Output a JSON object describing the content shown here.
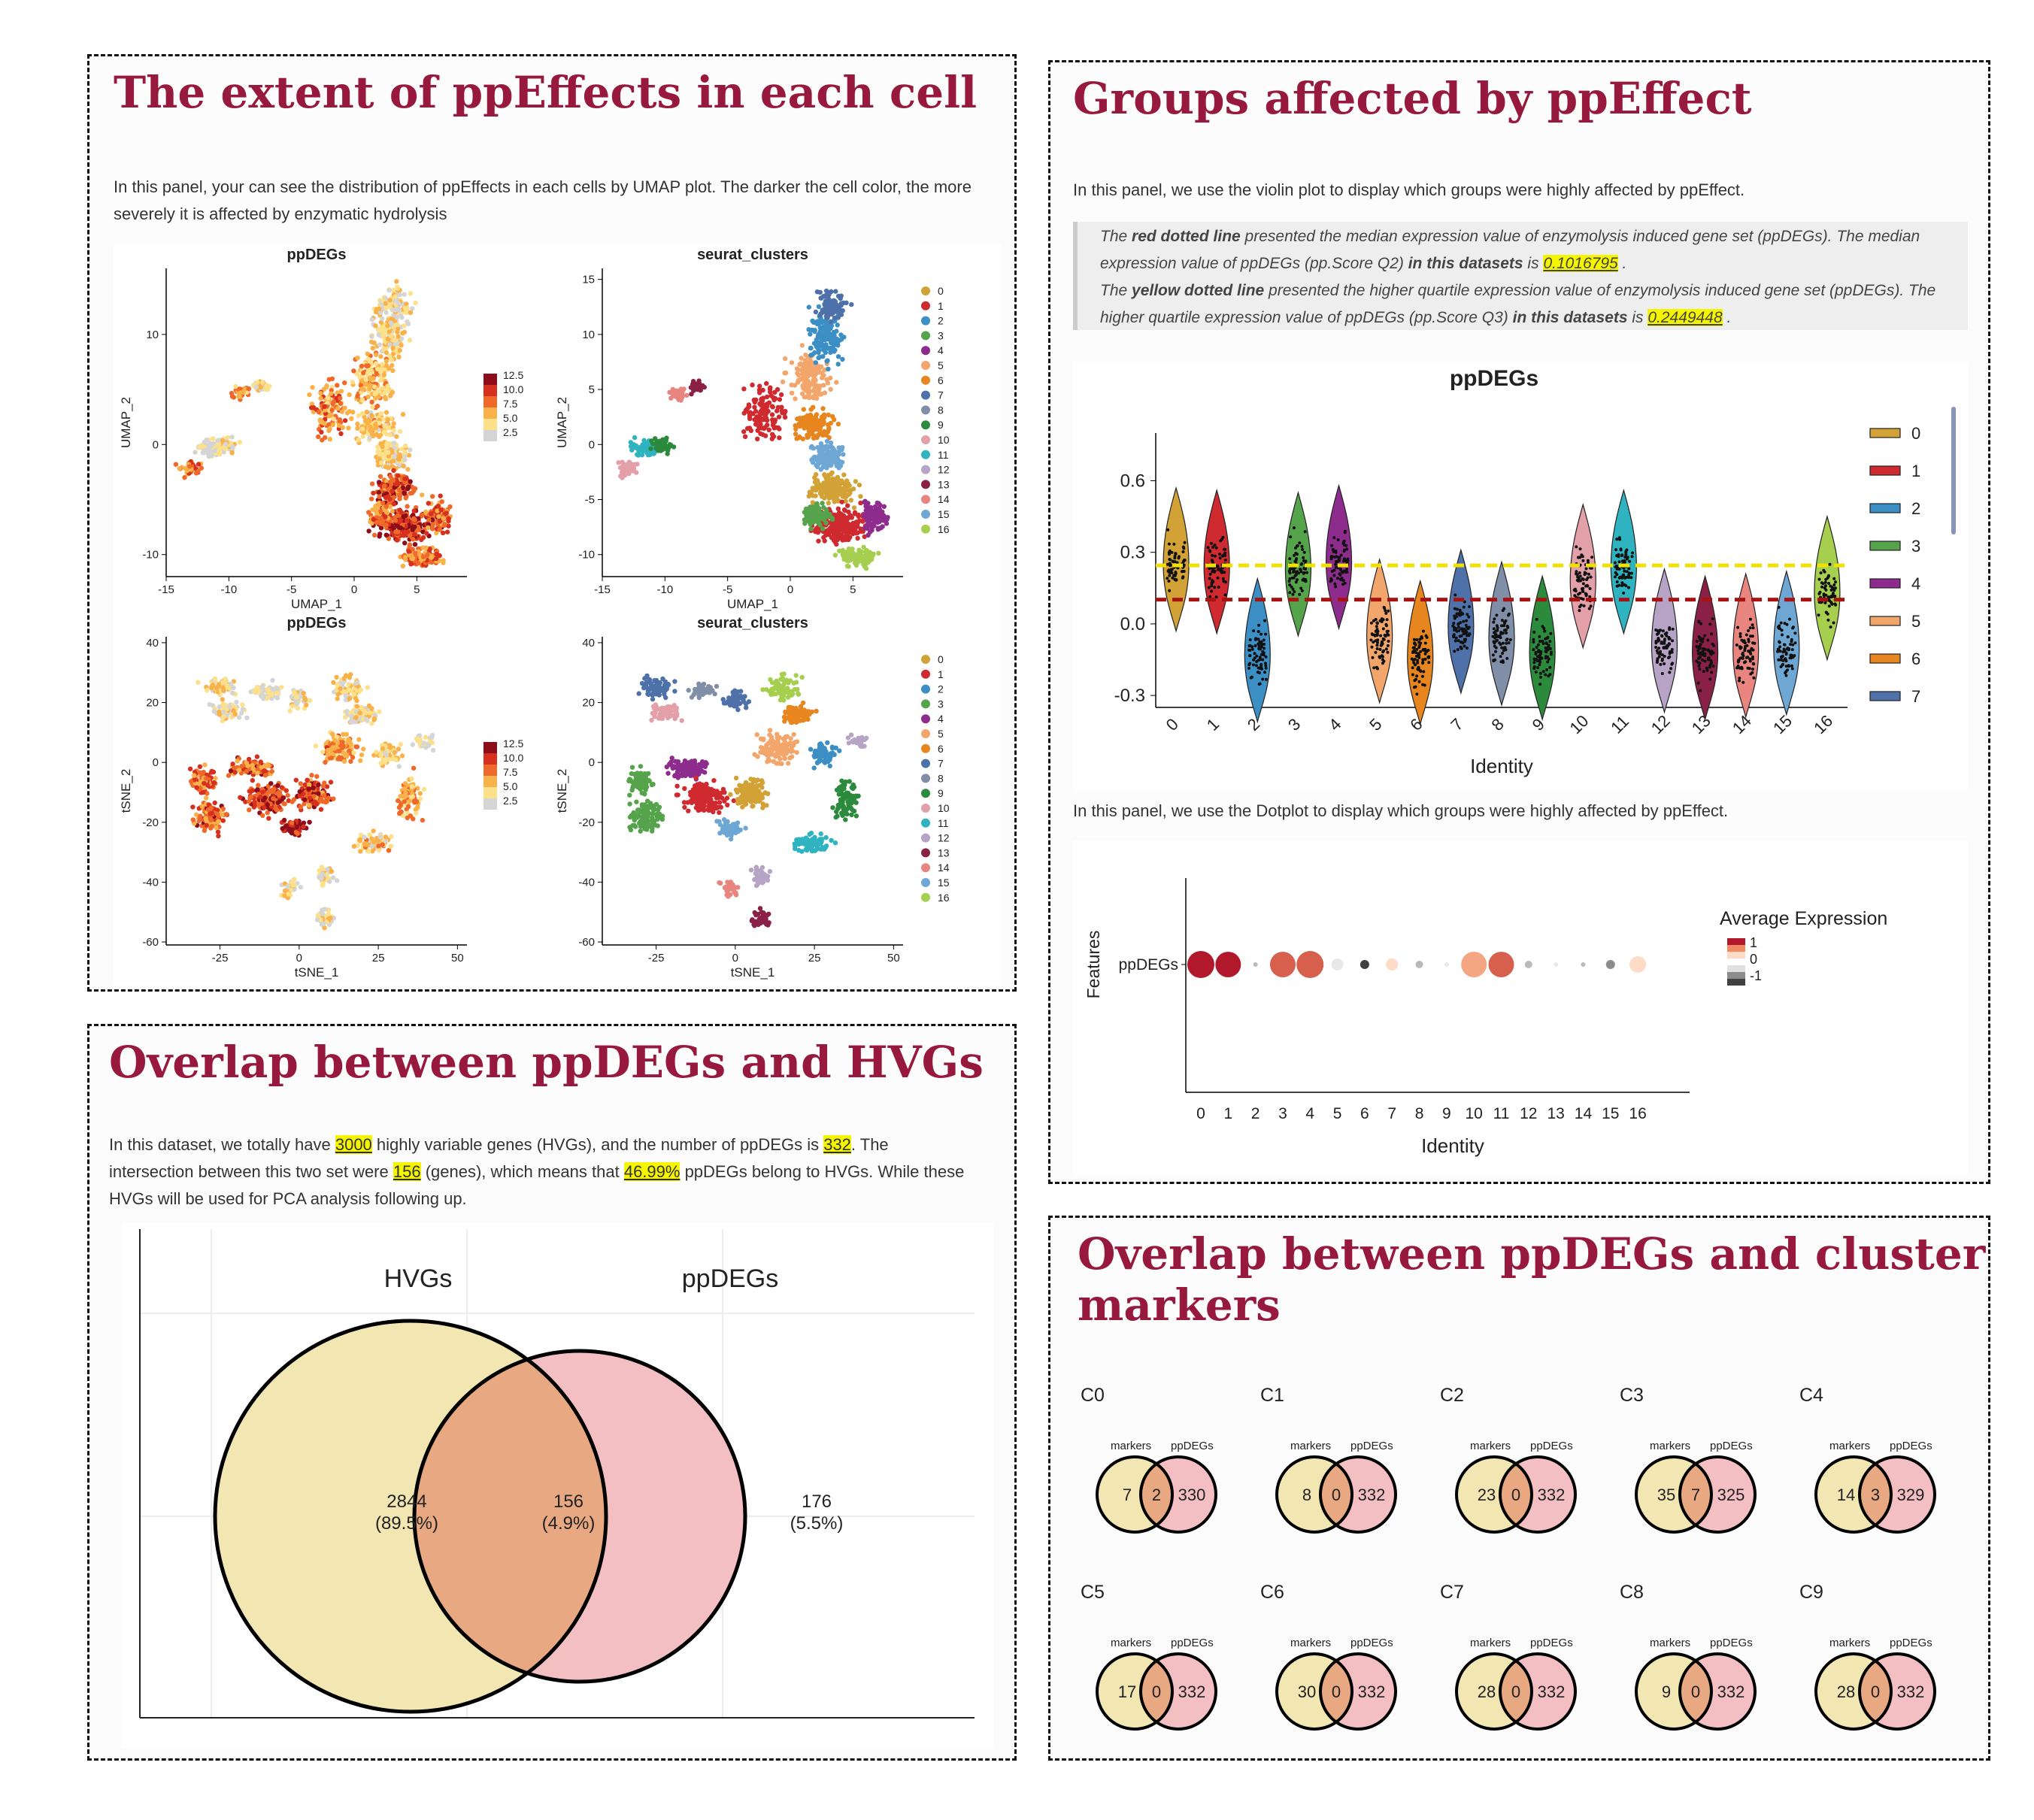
{
  "panel1": {
    "title": "The extent of ppEffects in each cell",
    "description": "In this panel, your can see the distribution of ppEffects in each cells by UMAP plot. The darker the cell color, the more severely it is affected by enzymatic hydrolysis"
  },
  "panel2": {
    "title": "Groups affected by ppEffect",
    "description": "In this panel, we use the violin plot to display which groups were highly affected by ppEffect.",
    "note": {
      "l1_a": "The ",
      "l1_b": "red dotted line",
      "l1_c": " presented the median expression value of enzymolysis induced gene set (ppDEGs). The median",
      "l2_a": "expression value of ppDEGs (pp.Score Q2) ",
      "l2_b": "in this datasets",
      "l2_c": " is ",
      "q2": "0.1016795",
      "l2_d": " .",
      "l3_a": "The ",
      "l3_b": "yellow dotted line",
      "l3_c": " presented the higher quartile expression value of enzymolysis induced gene set (ppDEGs). The",
      "l4_a": "higher quartile expression value of ppDEGs (pp.Score Q3) ",
      "l4_b": "in this datasets",
      "l4_c": " is ",
      "q3": "0.2449448",
      "l4_d": " ."
    },
    "dotplot_description": "In this panel, we use the Dotplot to display which groups were highly affected by ppEffect."
  },
  "panel3": {
    "title": "Overlap between ppDEGs and HVGs",
    "t1": "In this dataset, we totally have ",
    "hvgs": "3000",
    "t2": " highly variable genes (HVGs), and the number of ppDEGs is ",
    "ppdegs": "332",
    "t3": ". The",
    "t4": "intersection between this two set were ",
    "inter": "156",
    "t5": " (genes), which means that ",
    "pct": "46.99%",
    "t6": " ppDEGs belong to HVGs. While these",
    "t7": "HVGs will be used for PCA analysis following up."
  },
  "panel4": {
    "title_l1": "Overlap between ppDEGs and cluster",
    "title_l2": "markers"
  },
  "colors": {
    "brand": "#98193e",
    "highlight": "#f5f500",
    "venn_left": "#f2e6b3",
    "venn_right": "#f4bfc3",
    "venn_mid": "#e8a882",
    "q2_line": "#aa1111",
    "q3_line": "#f0e000"
  },
  "chart_data": [
    {
      "id": "umap_ppdegs",
      "type": "scatter",
      "title": "ppDEGs",
      "xlabel": "UMAP_1",
      "ylabel": "UMAP_2",
      "xlim": [
        -15,
        9
      ],
      "ylim": [
        -12,
        16
      ],
      "xticks": [
        "-15",
        "-10",
        "-5",
        "0",
        "5"
      ],
      "yticks": [
        "-10",
        "0",
        "10"
      ],
      "legend_values": [
        "12.5",
        "10.0",
        "7.5",
        "5.0",
        "2.5"
      ]
    },
    {
      "id": "umap_clusters",
      "type": "scatter",
      "title": "seurat_clusters",
      "xlabel": "UMAP_1",
      "ylabel": "UMAP_2",
      "xlim": [
        -15,
        9
      ],
      "ylim": [
        -12,
        16
      ],
      "xticks": [
        "-15",
        "-10",
        "-5",
        "0",
        "5"
      ],
      "yticks": [
        "-10",
        "-5",
        "0",
        "5",
        "10",
        "15"
      ],
      "legend": [
        "0",
        "1",
        "2",
        "3",
        "4",
        "5",
        "6",
        "7",
        "8",
        "9",
        "10",
        "11",
        "12",
        "13",
        "14",
        "15",
        "16"
      ]
    },
    {
      "id": "tsne_ppdegs",
      "type": "scatter",
      "title": "ppDEGs",
      "xlabel": "tSNE_1",
      "ylabel": "tSNE_2",
      "xlim": [
        -42,
        53
      ],
      "ylim": [
        -61,
        42
      ],
      "xticks": [
        "-25",
        "0",
        "25",
        "50"
      ],
      "yticks": [
        "-60",
        "-40",
        "-20",
        "0",
        "20",
        "40"
      ],
      "legend_values": [
        "12.5",
        "10.0",
        "7.5",
        "5.0",
        "2.5"
      ]
    },
    {
      "id": "tsne_clusters",
      "type": "scatter",
      "title": "seurat_clusters",
      "xlabel": "tSNE_1",
      "ylabel": "tSNE_2",
      "xlim": [
        -42,
        53
      ],
      "ylim": [
        -61,
        42
      ],
      "xticks": [
        "-25",
        "0",
        "25",
        "50"
      ],
      "yticks": [
        "-60",
        "-40",
        "-20",
        "0",
        "20",
        "40"
      ],
      "legend": [
        "0",
        "1",
        "2",
        "3",
        "4",
        "5",
        "6",
        "7",
        "8",
        "9",
        "10",
        "11",
        "12",
        "13",
        "14",
        "15",
        "16"
      ]
    },
    {
      "id": "violin",
      "type": "violin",
      "title": "ppDEGs",
      "xlabel": "Identity",
      "categories": [
        "0",
        "1",
        "2",
        "3",
        "4",
        "5",
        "6",
        "7",
        "8",
        "9",
        "10",
        "11",
        "12",
        "13",
        "14",
        "15",
        "16"
      ],
      "medians": [
        0.25,
        0.24,
        -0.13,
        0.23,
        0.26,
        -0.05,
        -0.14,
        -0.01,
        -0.06,
        -0.12,
        0.18,
        0.24,
        -0.09,
        -0.12,
        -0.11,
        -0.1,
        0.13
      ],
      "q2": 0.1016795,
      "q3": 0.2449448,
      "ylim": [
        -0.35,
        0.8
      ],
      "yticks": [
        "-0.3",
        "0.0",
        "0.3",
        "0.6"
      ],
      "legend": [
        "0",
        "1",
        "2",
        "3",
        "4",
        "5",
        "6",
        "7"
      ]
    },
    {
      "id": "dotplot",
      "type": "scatter",
      "xlabel": "Identity",
      "ylabel": "Features",
      "feature": "ppDEGs",
      "categories": [
        "0",
        "1",
        "2",
        "3",
        "4",
        "5",
        "6",
        "7",
        "8",
        "9",
        "10",
        "11",
        "12",
        "13",
        "14",
        "15",
        "16"
      ],
      "avg_expression": [
        1.6,
        1.4,
        -0.3,
        1.0,
        1.3,
        0.0,
        -1.0,
        0.2,
        -0.2,
        0.1,
        0.5,
        1.2,
        -0.3,
        -0.1,
        -0.2,
        -0.6,
        0.2
      ],
      "legend_title": "Average Expression",
      "legend_ticks": [
        "1",
        "0",
        "-1"
      ]
    },
    {
      "id": "venn_hvg",
      "type": "venn",
      "sets": [
        "HVGs",
        "ppDEGs"
      ],
      "left": "2844",
      "left_pct": "(89.5%)",
      "both": "156",
      "both_pct": "(4.9%)",
      "right": "176",
      "right_pct": "(5.5%)"
    },
    {
      "id": "venn_clusters",
      "type": "venn",
      "sets": [
        "markers",
        "ppDEGs"
      ],
      "clusters": [
        {
          "label": "C0",
          "markers": "7",
          "both": "2",
          "ppdegs": "330"
        },
        {
          "label": "C1",
          "markers": "8",
          "both": "0",
          "ppdegs": "332"
        },
        {
          "label": "C2",
          "markers": "23",
          "both": "0",
          "ppdegs": "332"
        },
        {
          "label": "C3",
          "markers": "35",
          "both": "7",
          "ppdegs": "325"
        },
        {
          "label": "C4",
          "markers": "14",
          "both": "3",
          "ppdegs": "329"
        },
        {
          "label": "C5",
          "markers": "17",
          "both": "0",
          "ppdegs": "332"
        },
        {
          "label": "C6",
          "markers": "30",
          "both": "0",
          "ppdegs": "332"
        },
        {
          "label": "C7",
          "markers": "28",
          "both": "0",
          "ppdegs": "332"
        },
        {
          "label": "C8",
          "markers": "9",
          "both": "0",
          "ppdegs": "332"
        },
        {
          "label": "C9",
          "markers": "28",
          "both": "0",
          "ppdegs": "332"
        }
      ]
    }
  ]
}
